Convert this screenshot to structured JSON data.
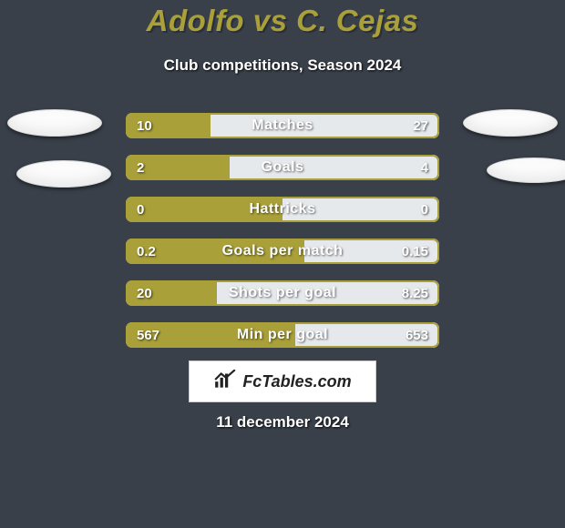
{
  "background_color": "#39404a",
  "title_color": "#a9a039",
  "title_shadow": "#2a2f38",
  "avatar_fill": "#fcfcfc",
  "header": {
    "title": "Adolfo vs C. Cejas",
    "subtitle": "Club competitions, Season 2024"
  },
  "players": {
    "left_color": "#a9a039",
    "right_color": "#e6e9ec"
  },
  "row_border_color": "#a9a039",
  "stats": [
    {
      "label": "Matches",
      "left_val": "10",
      "right_val": "27",
      "left_pct": 27.0,
      "right_pct": 73.0
    },
    {
      "label": "Goals",
      "left_val": "2",
      "right_val": "4",
      "left_pct": 33.0,
      "right_pct": 67.0
    },
    {
      "label": "Hattricks",
      "left_val": "0",
      "right_val": "0",
      "left_pct": 50.0,
      "right_pct": 50.0
    },
    {
      "label": "Goals per match",
      "left_val": "0.2",
      "right_val": "0.15",
      "left_pct": 57.0,
      "right_pct": 43.0
    },
    {
      "label": "Shots per goal",
      "left_val": "20",
      "right_val": "8.25",
      "left_pct": 29.0,
      "right_pct": 71.0
    },
    {
      "label": "Min per goal",
      "left_val": "567",
      "right_val": "653",
      "left_pct": 54.0,
      "right_pct": 46.0
    }
  ],
  "footer": {
    "brand": "FcTables.com",
    "date": "11 december 2024"
  }
}
